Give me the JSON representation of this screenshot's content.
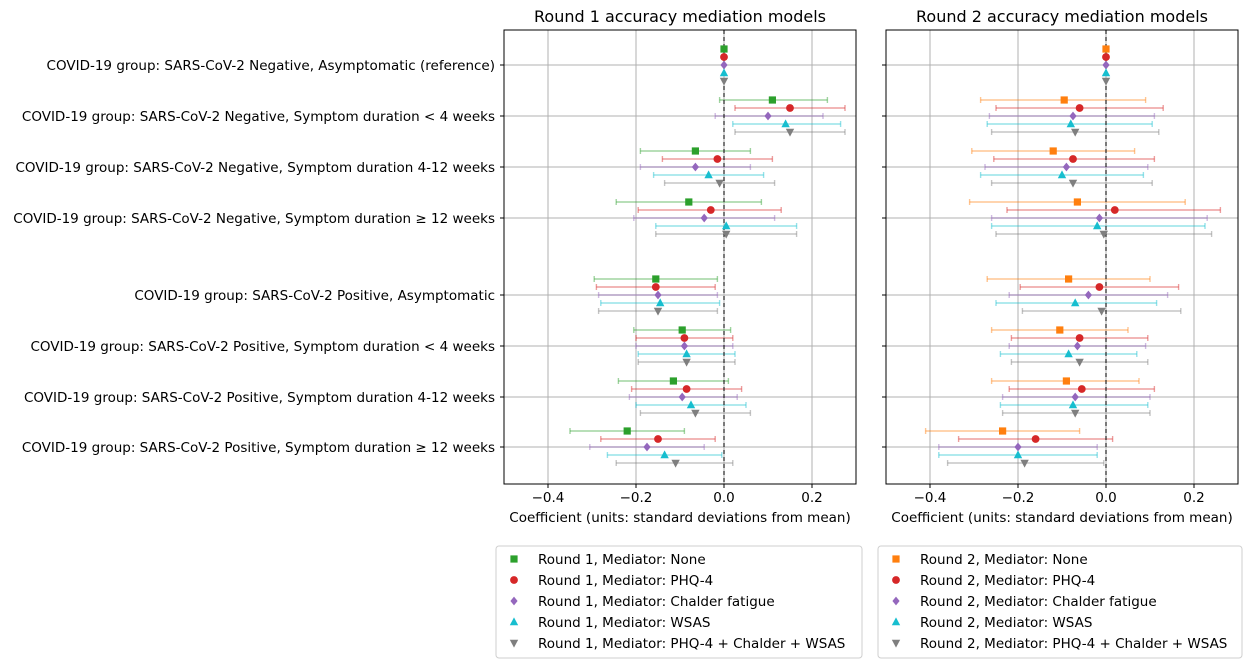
{
  "panels": [
    {
      "title": "Round 1 accuracy mediation models",
      "xlabel": "Coefficient (units: standard deviations from mean)"
    },
    {
      "title": "Round 2 accuracy mediation models",
      "xlabel": "Coefficient (units: standard deviations from mean)"
    }
  ],
  "chart_data": {
    "type": "scatter",
    "subtype": "forest-plot with error bars",
    "xlim": [
      -0.5,
      0.3
    ],
    "xticks": [
      -0.4,
      -0.2,
      0.0,
      0.2
    ],
    "xtick_labels": [
      "−0.4",
      "−0.2",
      "0.0",
      "0.2"
    ],
    "reference_line_x": 0,
    "grid": true,
    "categories": [
      "COVID-19 group: SARS-CoV-2 Negative, Asymptomatic (reference)",
      "COVID-19 group: SARS-CoV-2 Negative, Symptom duration < 4 weeks",
      "COVID-19 group: SARS-CoV-2 Negative, Symptom duration 4-12 weeks",
      "COVID-19 group: SARS-CoV-2 Negative, Symptom duration ≥ 12 weeks",
      "COVID-19 group: SARS-CoV-2 Positive, Asymptomatic",
      "COVID-19 group: SARS-CoV-2 Positive, Symptom duration < 4 weeks",
      "COVID-19 group: SARS-CoV-2 Positive, Symptom duration 4-12 weeks",
      "COVID-19 group: SARS-CoV-2 Positive, Symptom duration ≥ 12 weeks"
    ],
    "mediators": [
      {
        "key": "none",
        "marker": "square",
        "r1color": "#2ca02c",
        "r2color": "#ff7f0e"
      },
      {
        "key": "phq4",
        "marker": "circle",
        "r1color": "#d62728",
        "r2color": "#d62728"
      },
      {
        "key": "chalder",
        "marker": "diamond",
        "r1color": "#9467bd",
        "r2color": "#9467bd"
      },
      {
        "key": "wsas",
        "marker": "triangle-up",
        "r1color": "#17becf",
        "r2color": "#17becf"
      },
      {
        "key": "combined",
        "marker": "triangle-down",
        "r1color": "#7f7f7f",
        "r2color": "#7f7f7f"
      }
    ],
    "panels": [
      {
        "title": "Round 1 accuracy mediation models",
        "series": [
          {
            "name": "Round 1, Mediator: None",
            "color": "#2ca02c",
            "marker": "square",
            "values": [
              0.0,
              0.11,
              -0.065,
              -0.08,
              -0.155,
              -0.095,
              -0.115,
              -0.22
            ],
            "lower": [
              0.0,
              -0.01,
              -0.19,
              -0.245,
              -0.295,
              -0.205,
              -0.24,
              -0.35
            ],
            "upper": [
              0.0,
              0.235,
              0.06,
              0.085,
              -0.015,
              0.015,
              0.01,
              -0.09
            ]
          },
          {
            "name": "Round 1, Mediator: PHQ-4",
            "color": "#d62728",
            "marker": "circle",
            "values": [
              0.0,
              0.15,
              -0.015,
              -0.03,
              -0.155,
              -0.09,
              -0.085,
              -0.15
            ],
            "lower": [
              0.0,
              0.025,
              -0.14,
              -0.195,
              -0.29,
              -0.2,
              -0.21,
              -0.28
            ],
            "upper": [
              0.0,
              0.275,
              0.11,
              0.13,
              -0.02,
              0.02,
              0.04,
              -0.02
            ]
          },
          {
            "name": "Round 1, Mediator: Chalder fatigue",
            "color": "#9467bd",
            "marker": "diamond",
            "values": [
              0.0,
              0.1,
              -0.065,
              -0.045,
              -0.15,
              -0.09,
              -0.095,
              -0.175
            ],
            "lower": [
              0.0,
              -0.02,
              -0.19,
              -0.205,
              -0.285,
              -0.2,
              -0.215,
              -0.305
            ],
            "upper": [
              0.0,
              0.225,
              0.06,
              0.115,
              -0.015,
              0.02,
              0.03,
              -0.045
            ]
          },
          {
            "name": "Round 1, Mediator: WSAS",
            "color": "#17becf",
            "marker": "triangle-up",
            "values": [
              0.0,
              0.14,
              -0.035,
              0.005,
              -0.145,
              -0.085,
              -0.075,
              -0.135
            ],
            "lower": [
              0.0,
              0.02,
              -0.16,
              -0.155,
              -0.28,
              -0.195,
              -0.2,
              -0.265
            ],
            "upper": [
              0.0,
              0.265,
              0.09,
              0.165,
              -0.01,
              0.025,
              0.05,
              -0.005
            ]
          },
          {
            "name": "Round 1, Mediator: PHQ-4 + Chalder + WSAS",
            "color": "#7f7f7f",
            "marker": "triangle-down",
            "values": [
              0.0,
              0.15,
              -0.01,
              0.005,
              -0.15,
              -0.085,
              -0.065,
              -0.11
            ],
            "lower": [
              0.0,
              0.025,
              -0.135,
              -0.155,
              -0.285,
              -0.195,
              -0.19,
              -0.245
            ],
            "upper": [
              0.0,
              0.275,
              0.115,
              0.165,
              -0.015,
              0.025,
              0.06,
              0.02
            ]
          }
        ]
      },
      {
        "title": "Round 2 accuracy mediation models",
        "series": [
          {
            "name": "Round 2, Mediator: None",
            "color": "#ff7f0e",
            "marker": "square",
            "values": [
              0.0,
              -0.095,
              -0.12,
              -0.065,
              -0.085,
              -0.105,
              -0.09,
              -0.235
            ],
            "lower": [
              0.0,
              -0.285,
              -0.305,
              -0.31,
              -0.27,
              -0.26,
              -0.26,
              -0.41
            ],
            "upper": [
              0.0,
              0.09,
              0.065,
              0.18,
              0.1,
              0.05,
              0.075,
              -0.06
            ]
          },
          {
            "name": "Round 2, Mediator: PHQ-4",
            "color": "#d62728",
            "marker": "circle",
            "values": [
              0.0,
              -0.06,
              -0.075,
              0.02,
              -0.015,
              -0.06,
              -0.055,
              -0.16
            ],
            "lower": [
              0.0,
              -0.25,
              -0.255,
              -0.225,
              -0.195,
              -0.215,
              -0.22,
              -0.335
            ],
            "upper": [
              0.0,
              0.13,
              0.11,
              0.26,
              0.165,
              0.095,
              0.11,
              0.015
            ]
          },
          {
            "name": "Round 2, Mediator: Chalder fatigue",
            "color": "#9467bd",
            "marker": "diamond",
            "values": [
              0.0,
              -0.075,
              -0.09,
              -0.015,
              -0.04,
              -0.065,
              -0.07,
              -0.2
            ],
            "lower": [
              0.0,
              -0.265,
              -0.275,
              -0.26,
              -0.22,
              -0.22,
              -0.235,
              -0.38
            ],
            "upper": [
              0.0,
              0.11,
              0.095,
              0.23,
              0.14,
              0.09,
              0.1,
              -0.02
            ]
          },
          {
            "name": "Round 2, Mediator: WSAS",
            "color": "#17becf",
            "marker": "triangle-up",
            "values": [
              0.0,
              -0.08,
              -0.1,
              -0.02,
              -0.07,
              -0.085,
              -0.075,
              -0.2
            ],
            "lower": [
              0.0,
              -0.27,
              -0.285,
              -0.26,
              -0.25,
              -0.24,
              -0.24,
              -0.38
            ],
            "upper": [
              0.0,
              0.105,
              0.085,
              0.225,
              0.115,
              0.07,
              0.095,
              -0.02
            ]
          },
          {
            "name": "Round 2, Mediator: PHQ-4 + Chalder + WSAS",
            "color": "#7f7f7f",
            "marker": "triangle-down",
            "values": [
              0.0,
              -0.07,
              -0.075,
              -0.005,
              -0.01,
              -0.06,
              -0.07,
              -0.185
            ],
            "lower": [
              0.0,
              -0.26,
              -0.26,
              -0.25,
              -0.19,
              -0.215,
              -0.235,
              -0.36
            ],
            "upper": [
              0.0,
              0.12,
              0.105,
              0.24,
              0.17,
              0.095,
              0.1,
              -0.005
            ]
          }
        ]
      }
    ]
  }
}
